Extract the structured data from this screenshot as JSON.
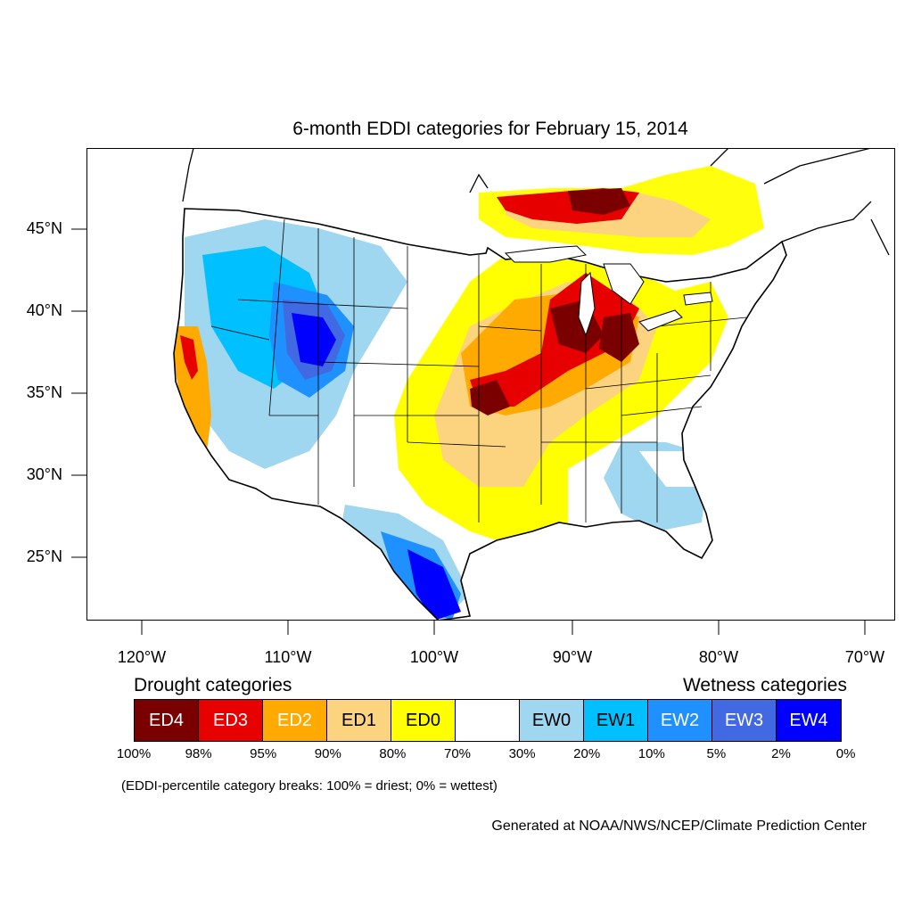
{
  "title": "6-month EDDI categories for February 15, 2014",
  "lat_labels": [
    "45°N",
    "40°N",
    "35°N",
    "30°N",
    "25°N"
  ],
  "lon_labels": [
    "120°W",
    "110°W",
    "100°W",
    "90°W",
    "80°W",
    "70°W"
  ],
  "legend": {
    "drought_title": "Drought categories",
    "wetness_title": "Wetness categories",
    "categories": [
      {
        "label": "ED4",
        "color": "#7a0000",
        "text_color": "#ffffff"
      },
      {
        "label": "ED3",
        "color": "#e60000",
        "text_color": "#ffffff"
      },
      {
        "label": "ED2",
        "color": "#ffaa00",
        "text_color": "#ffffff"
      },
      {
        "label": "ED1",
        "color": "#fcd37f",
        "text_color": "#000000"
      },
      {
        "label": "ED0",
        "color": "#ffff00",
        "text_color": "#000000"
      },
      {
        "label": "",
        "color": "#ffffff",
        "text_color": "#000000"
      },
      {
        "label": "EW0",
        "color": "#9fd6f0",
        "text_color": "#000000"
      },
      {
        "label": "EW1",
        "color": "#00c0ff",
        "text_color": "#000000"
      },
      {
        "label": "EW2",
        "color": "#1e90ff",
        "text_color": "#ffffff"
      },
      {
        "label": "EW3",
        "color": "#4169e1",
        "text_color": "#ffffff"
      },
      {
        "label": "EW4",
        "color": "#0000ff",
        "text_color": "#ffffff"
      }
    ],
    "breaks": [
      "100%",
      "98%",
      "95%",
      "90%",
      "80%",
      "70%",
      "30%",
      "20%",
      "10%",
      "5%",
      "2%",
      "0%"
    ]
  },
  "note": "(EDDI-percentile category breaks: 100% = driest; 0% = wettest)",
  "credit": "Generated at NOAA/NWS/NCEP/Climate Prediction Center"
}
